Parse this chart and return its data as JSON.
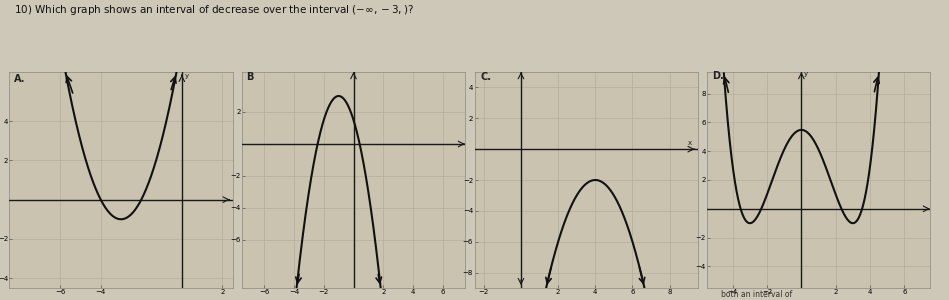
{
  "bg_color": "#cec8b8",
  "graph_bg": "#cac3b0",
  "grid_color": "#b5ae9d",
  "axis_color": "#1a1a1a",
  "curve_color": "#111111",
  "label_A": "A.",
  "label_B": "B",
  "label_C": "C.",
  "label_D": "D.",
  "question": "10) Which graph shows an interval of decrease over the interval $(-\\infty,-3,)$?",
  "bottom_text": "both an interval of"
}
